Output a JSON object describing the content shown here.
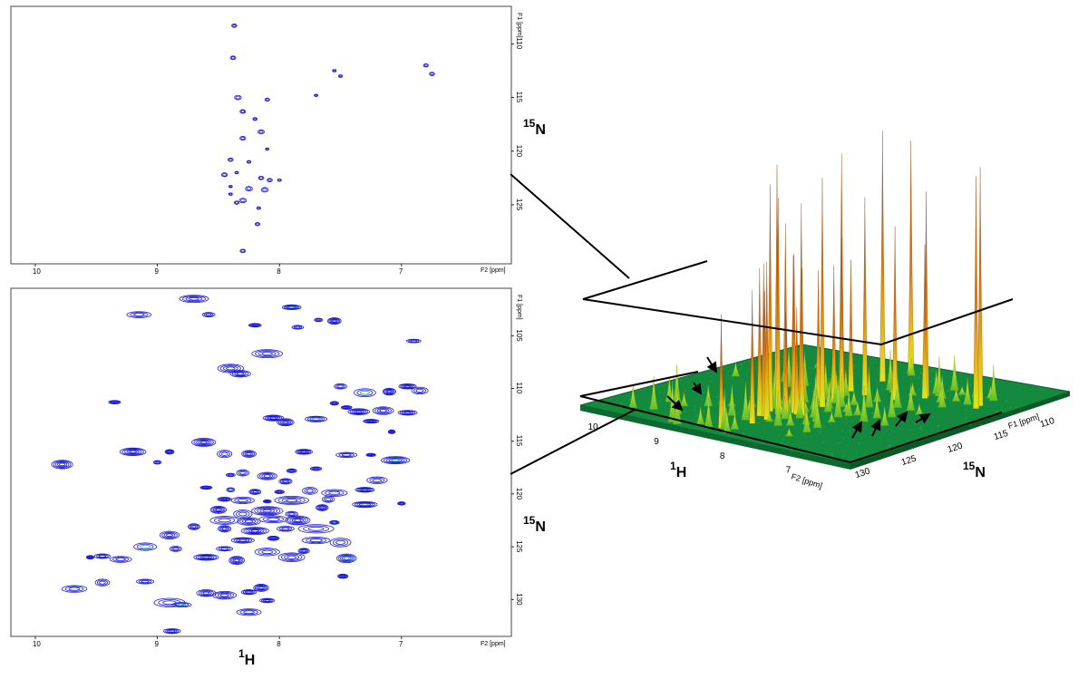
{
  "colors": {
    "contour": "#1a1ad8",
    "contour_neg": "#1aa890",
    "floor": "#138a3e",
    "floor_edge": "#0c5a28",
    "peak_tall": "#d9750f",
    "peak_low": "#d8e81c"
  },
  "chart_data": [
    {
      "id": "top-spectrum",
      "type": "scatter",
      "style": "contour",
      "x_label": "F2 [ppm]",
      "y_label": "F1 [ppm]",
      "x_ticks": [
        "10",
        "9",
        "8",
        "7"
      ],
      "y_ticks": [
        "110",
        "115",
        "120",
        "125"
      ],
      "xlim": [
        10.2,
        6.1
      ],
      "ylim": [
        106.5,
        130.5
      ],
      "peaks": [
        [
          8.37,
          108.3
        ],
        [
          8.38,
          111.3
        ],
        [
          7.55,
          112.5
        ],
        [
          7.5,
          113.0
        ],
        [
          6.8,
          112.0
        ],
        [
          6.75,
          112.8
        ],
        [
          7.7,
          114.8
        ],
        [
          8.34,
          115.0
        ],
        [
          8.3,
          116.3
        ],
        [
          8.1,
          115.2
        ],
        [
          8.2,
          117.0
        ],
        [
          8.15,
          118.2
        ],
        [
          8.3,
          118.8
        ],
        [
          8.1,
          119.8
        ],
        [
          8.4,
          120.8
        ],
        [
          8.25,
          121.0
        ],
        [
          8.45,
          122.2
        ],
        [
          8.35,
          122.0
        ],
        [
          8.15,
          122.5
        ],
        [
          8.08,
          122.7
        ],
        [
          8.0,
          122.7
        ],
        [
          8.4,
          123.3
        ],
        [
          8.25,
          123.5
        ],
        [
          8.12,
          123.6
        ],
        [
          8.4,
          124.0
        ],
        [
          8.35,
          124.8
        ],
        [
          8.3,
          124.6
        ],
        [
          8.17,
          125.3
        ],
        [
          8.18,
          126.8
        ],
        [
          8.3,
          129.3
        ]
      ]
    },
    {
      "id": "bottom-spectrum",
      "type": "scatter",
      "style": "contour",
      "x_label": "F2 [ppm]",
      "y_label": "F1 [ppm]",
      "x_ticks": [
        "10",
        "9",
        "8",
        "7"
      ],
      "y_ticks": [
        "105",
        "110",
        "115",
        "120",
        "125",
        "130"
      ],
      "xlim": [
        10.2,
        6.1
      ],
      "ylim": [
        100.5,
        133.5
      ],
      "peaks": [
        [
          8.7,
          101.5
        ],
        [
          9.15,
          103.0
        ],
        [
          8.58,
          103.0
        ],
        [
          7.9,
          102.3
        ],
        [
          8.2,
          104.0
        ],
        [
          7.68,
          103.5
        ],
        [
          7.55,
          103.6
        ],
        [
          7.85,
          104.2
        ],
        [
          6.9,
          105.5
        ],
        [
          8.1,
          106.7
        ],
        [
          8.4,
          108.1
        ],
        [
          8.32,
          108.6
        ],
        [
          7.5,
          109.8
        ],
        [
          7.1,
          110.3
        ],
        [
          7.3,
          110.4
        ],
        [
          6.95,
          109.8
        ],
        [
          6.85,
          110.2
        ],
        [
          9.35,
          111.3
        ],
        [
          7.55,
          111.4
        ],
        [
          7.45,
          111.8
        ],
        [
          7.35,
          112.2
        ],
        [
          7.15,
          112.1
        ],
        [
          6.95,
          112.3
        ],
        [
          8.05,
          112.8
        ],
        [
          7.95,
          113.2
        ],
        [
          7.7,
          112.9
        ],
        [
          7.25,
          113.1
        ],
        [
          7.08,
          114.1
        ],
        [
          8.62,
          115.1
        ],
        [
          9.2,
          116.0
        ],
        [
          8.9,
          116.0
        ],
        [
          8.45,
          116.2
        ],
        [
          8.25,
          116.2
        ],
        [
          7.8,
          116.0
        ],
        [
          7.45,
          116.3
        ],
        [
          7.25,
          116.3
        ],
        [
          7.05,
          116.8
        ],
        [
          9.78,
          117.2
        ],
        [
          9.0,
          117.0
        ],
        [
          8.3,
          118.0
        ],
        [
          8.1,
          118.3
        ],
        [
          7.9,
          117.8
        ],
        [
          7.7,
          117.6
        ],
        [
          8.4,
          118.2
        ],
        [
          7.95,
          118.8
        ],
        [
          7.2,
          118.7
        ],
        [
          8.6,
          119.4
        ],
        [
          8.4,
          119.6
        ],
        [
          8.2,
          119.8
        ],
        [
          8.0,
          119.8
        ],
        [
          7.75,
          119.7
        ],
        [
          7.55,
          119.9
        ],
        [
          7.3,
          119.6
        ],
        [
          8.45,
          120.5
        ],
        [
          8.3,
          120.6
        ],
        [
          8.1,
          120.7
        ],
        [
          7.9,
          120.6
        ],
        [
          7.6,
          120.5
        ],
        [
          7.3,
          121.0
        ],
        [
          7.0,
          120.9
        ],
        [
          8.5,
          121.5
        ],
        [
          8.3,
          121.9
        ],
        [
          8.1,
          121.6
        ],
        [
          7.9,
          121.9
        ],
        [
          7.65,
          121.3
        ],
        [
          8.45,
          122.5
        ],
        [
          8.25,
          122.6
        ],
        [
          8.05,
          122.4
        ],
        [
          7.85,
          122.5
        ],
        [
          7.55,
          122.7
        ],
        [
          8.7,
          123.1
        ],
        [
          8.45,
          123.3
        ],
        [
          8.2,
          123.5
        ],
        [
          7.95,
          123.3
        ],
        [
          7.7,
          123.3
        ],
        [
          8.9,
          123.9
        ],
        [
          8.3,
          124.4
        ],
        [
          8.05,
          124.2
        ],
        [
          7.7,
          124.4
        ],
        [
          7.5,
          124.6
        ],
        [
          9.1,
          125.0
        ],
        [
          8.85,
          125.2
        ],
        [
          8.45,
          125.2
        ],
        [
          8.1,
          125.5
        ],
        [
          7.8,
          125.4
        ],
        [
          9.3,
          126.2
        ],
        [
          8.6,
          126.0
        ],
        [
          8.35,
          126.3
        ],
        [
          7.9,
          126.0
        ],
        [
          9.45,
          125.9
        ],
        [
          9.55,
          126.0
        ],
        [
          7.45,
          126.1
        ],
        [
          7.48,
          127.8
        ],
        [
          9.1,
          128.3
        ],
        [
          9.45,
          128.4
        ],
        [
          9.68,
          129.0
        ],
        [
          8.15,
          128.9
        ],
        [
          8.25,
          129.3
        ],
        [
          8.45,
          129.6
        ],
        [
          8.6,
          129.4
        ],
        [
          8.1,
          130.1
        ],
        [
          8.9,
          130.3
        ],
        [
          8.8,
          130.5
        ],
        [
          8.25,
          131.2
        ],
        [
          8.88,
          133.0
        ]
      ]
    },
    {
      "id": "surface-3d",
      "type": "area",
      "style": "3d-surface",
      "x_label": "F2 [ppm]",
      "z_label": "F1 [ppm]",
      "x_ticks": [
        "10",
        "9",
        "8",
        "7"
      ],
      "z_ticks": [
        "130",
        "125",
        "120",
        "115",
        "110"
      ],
      "annotation": "arrows mark low-intensity peaks"
    }
  ],
  "labels": {
    "nucleus_15n": "15",
    "nucleus_n": "N",
    "nucleus_1h": "1",
    "nucleus_h": "H"
  }
}
